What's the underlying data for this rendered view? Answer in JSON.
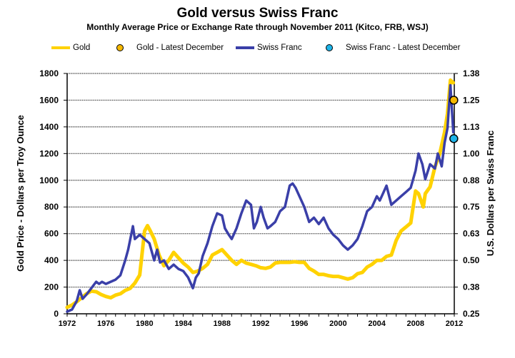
{
  "chart_data": {
    "type": "line",
    "title": "Gold versus Swiss Franc",
    "subtitle": "Monthly Average Price or Exchange Rate through November 2011 (Kitco, FRB, WSJ)",
    "ylabel": "Gold Price - Dollars per Troy Ounce",
    "y2label": "U.S. Dollars per Swiss Franc",
    "xlim": [
      1972,
      2012
    ],
    "ylim": [
      0,
      1800
    ],
    "y2lim": [
      0.25,
      1.375
    ],
    "x_ticks": [
      "1972",
      "1976",
      "1980",
      "1984",
      "1988",
      "1992",
      "1996",
      "2000",
      "2004",
      "2008",
      "2012"
    ],
    "y_ticks": [
      "0",
      "200",
      "400",
      "600",
      "800",
      "1000",
      "1200",
      "1400",
      "1600",
      "1800"
    ],
    "y2_ticks": [
      "0.25",
      "0.38",
      "0.50",
      "0.63",
      "0.75",
      "0.88",
      "1.00",
      "1.13",
      "1.25",
      "1.38"
    ],
    "grid": true,
    "legend_position": "top",
    "legend": [
      {
        "name": "Gold",
        "kind": "line",
        "color": "#FFD200"
      },
      {
        "name": "Gold - Latest December",
        "kind": "dot",
        "color": "#F5B800"
      },
      {
        "name": "Swiss Franc",
        "kind": "line",
        "color": "#3A3FA8"
      },
      {
        "name": "Swiss Franc - Latest December",
        "kind": "dot",
        "color": "#1EB4E8"
      }
    ],
    "series": [
      {
        "name": "Gold",
        "axis": "left",
        "color": "#FFD200",
        "x": [
          1972,
          1972.5,
          1973,
          1973.5,
          1974,
          1974.5,
          1975,
          1975.5,
          1976,
          1976.5,
          1977,
          1977.5,
          1978,
          1978.5,
          1979,
          1979.5,
          1980,
          1980.3,
          1980.6,
          1981,
          1981.5,
          1982,
          1982.5,
          1983,
          1983.5,
          1984,
          1984.5,
          1985,
          1985.5,
          1986,
          1986.5,
          1987,
          1987.5,
          1988,
          1988.5,
          1989,
          1989.5,
          1990,
          1990.5,
          1991,
          1991.5,
          1992,
          1992.5,
          1993,
          1993.5,
          1994,
          1994.5,
          1995,
          1995.5,
          1996,
          1996.5,
          1997,
          1997.5,
          1998,
          1998.5,
          1999,
          1999.5,
          2000,
          2000.5,
          2001,
          2001.5,
          2002,
          2002.5,
          2003,
          2003.5,
          2004,
          2004.5,
          2005,
          2005.5,
          2006,
          2006.5,
          2007,
          2007.5,
          2008,
          2008.3,
          2008.8,
          2009,
          2009.5,
          2010,
          2010.5,
          2011,
          2011.3,
          2011.6,
          2011.9
        ],
        "values": [
          48,
          65,
          90,
          120,
          150,
          170,
          165,
          145,
          130,
          120,
          140,
          150,
          175,
          190,
          230,
          290,
          620,
          660,
          620,
          560,
          440,
          360,
          400,
          460,
          420,
          380,
          350,
          310,
          320,
          340,
          370,
          440,
          460,
          480,
          440,
          400,
          370,
          400,
          380,
          370,
          360,
          345,
          340,
          350,
          380,
          385,
          385,
          385,
          390,
          385,
          385,
          340,
          320,
          295,
          295,
          285,
          280,
          280,
          270,
          260,
          270,
          300,
          310,
          350,
          370,
          400,
          400,
          430,
          440,
          550,
          620,
          650,
          680,
          920,
          900,
          800,
          900,
          950,
          1100,
          1200,
          1360,
          1500,
          1750,
          1730
        ]
      },
      {
        "name": "Swiss Franc",
        "axis": "right",
        "color": "#3A3FA8",
        "x": [
          1972,
          1972.5,
          1973,
          1973.3,
          1973.6,
          1974,
          1974.5,
          1975,
          1975.3,
          1975.6,
          1976,
          1976.5,
          1977,
          1977.5,
          1978,
          1978.3,
          1978.8,
          1979,
          1979.5,
          1980,
          1980.5,
          1981,
          1981.3,
          1981.6,
          1982,
          1982.5,
          1983,
          1983.5,
          1984,
          1984.5,
          1985,
          1985.3,
          1985.6,
          1986,
          1986.5,
          1987,
          1987.5,
          1988,
          1988.3,
          1988.7,
          1989,
          1989.5,
          1990,
          1990.5,
          1991,
          1991.3,
          1991.6,
          1992,
          1992.3,
          1992.7,
          1993,
          1993.5,
          1994,
          1994.5,
          1995,
          1995.3,
          1995.6,
          1996,
          1996.5,
          1997,
          1997.5,
          1998,
          1998.5,
          1999,
          1999.5,
          2000,
          2000.5,
          2001,
          2001.5,
          2002,
          2002.5,
          2003,
          2003.5,
          2004,
          2004.3,
          2004.7,
          2005,
          2005.5,
          2006,
          2006.5,
          2007,
          2007.5,
          2008,
          2008.3,
          2008.7,
          2009,
          2009.5,
          2010,
          2010.3,
          2010.7,
          2011,
          2011.3,
          2011.6,
          2011.9
        ],
        "values": [
          0.26,
          0.27,
          0.31,
          0.36,
          0.32,
          0.34,
          0.37,
          0.4,
          0.39,
          0.4,
          0.39,
          0.4,
          0.41,
          0.43,
          0.5,
          0.55,
          0.66,
          0.6,
          0.62,
          0.6,
          0.58,
          0.5,
          0.55,
          0.49,
          0.5,
          0.46,
          0.48,
          0.46,
          0.45,
          0.42,
          0.37,
          0.42,
          0.44,
          0.52,
          0.58,
          0.66,
          0.72,
          0.71,
          0.65,
          0.62,
          0.6,
          0.65,
          0.72,
          0.78,
          0.76,
          0.65,
          0.68,
          0.75,
          0.7,
          0.65,
          0.66,
          0.68,
          0.73,
          0.75,
          0.85,
          0.86,
          0.84,
          0.8,
          0.75,
          0.68,
          0.7,
          0.67,
          0.7,
          0.65,
          0.62,
          0.6,
          0.57,
          0.55,
          0.57,
          0.6,
          0.66,
          0.73,
          0.75,
          0.8,
          0.78,
          0.82,
          0.85,
          0.76,
          0.78,
          0.8,
          0.82,
          0.84,
          0.92,
          1.0,
          0.95,
          0.88,
          0.95,
          0.93,
          1.0,
          0.94,
          1.05,
          1.12,
          1.32,
          1.1
        ]
      }
    ],
    "latest_december": [
      {
        "name": "Gold - Latest December",
        "x": 2011.95,
        "value": 1600,
        "axis": "left"
      },
      {
        "name": "Swiss Franc - Latest December",
        "x": 2011.95,
        "value": 1.07,
        "axis": "right"
      }
    ]
  }
}
